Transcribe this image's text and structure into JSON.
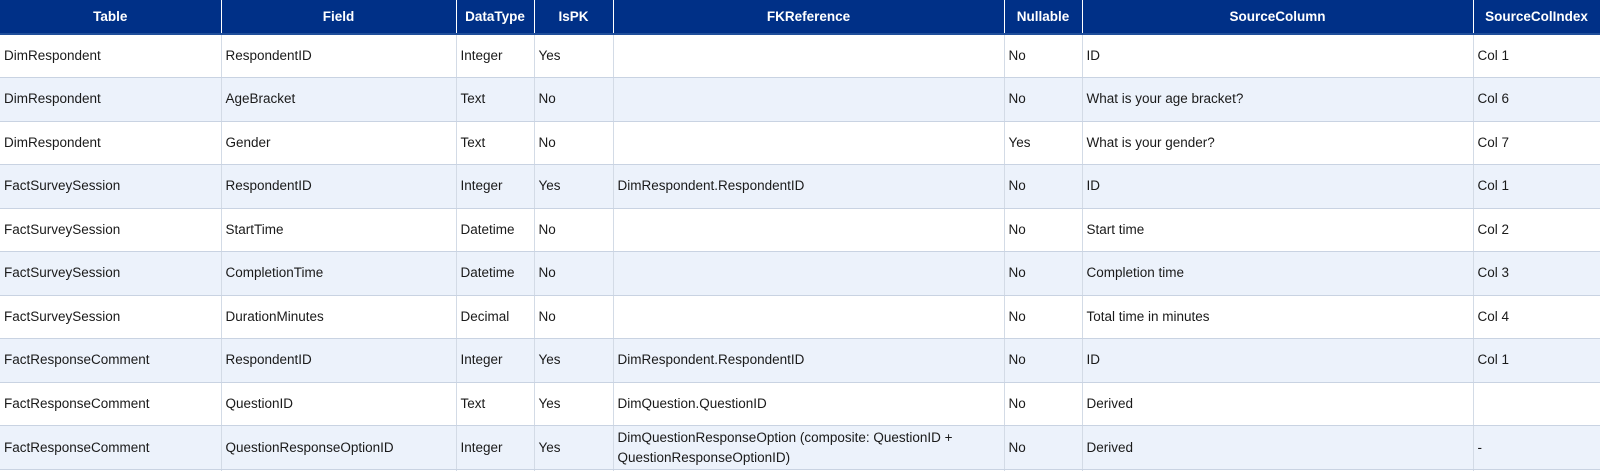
{
  "columns": [
    "Table",
    "Field",
    "DataType",
    "IsPK",
    "FKReference",
    "Nullable",
    "SourceColumn",
    "SourceColIndex"
  ],
  "rows": [
    {
      "table": "DimRespondent",
      "field": "RespondentID",
      "datatype": "Integer",
      "ispk": "Yes",
      "fk": "",
      "nullable": "No",
      "source": "ID",
      "index": "Col 1"
    },
    {
      "table": "DimRespondent",
      "field": "AgeBracket",
      "datatype": "Text",
      "ispk": "No",
      "fk": "",
      "nullable": "No",
      "source": "What is your age bracket?",
      "index": "Col 6"
    },
    {
      "table": "DimRespondent",
      "field": "Gender",
      "datatype": "Text",
      "ispk": "No",
      "fk": "",
      "nullable": "Yes",
      "source": "What is your gender?",
      "index": "Col 7"
    },
    {
      "table": "FactSurveySession",
      "field": "RespondentID",
      "datatype": "Integer",
      "ispk": "Yes",
      "fk": "DimRespondent.RespondentID",
      "nullable": "No",
      "source": "ID",
      "index": "Col 1"
    },
    {
      "table": "FactSurveySession",
      "field": "StartTime",
      "datatype": "Datetime",
      "ispk": "No",
      "fk": "",
      "nullable": "No",
      "source": "Start time",
      "index": "Col 2"
    },
    {
      "table": "FactSurveySession",
      "field": "CompletionTime",
      "datatype": "Datetime",
      "ispk": "No",
      "fk": "",
      "nullable": "No",
      "source": "Completion time",
      "index": "Col 3"
    },
    {
      "table": "FactSurveySession",
      "field": "DurationMinutes",
      "datatype": "Decimal",
      "ispk": "No",
      "fk": "",
      "nullable": "No",
      "source": "Total time in minutes",
      "index": "Col 4"
    },
    {
      "table": "FactResponseComment",
      "field": "RespondentID",
      "datatype": "Integer",
      "ispk": "Yes",
      "fk": "DimRespondent.RespondentID",
      "nullable": "No",
      "source": "ID",
      "index": "Col 1"
    },
    {
      "table": "FactResponseComment",
      "field": "QuestionID",
      "datatype": "Text",
      "ispk": "Yes",
      "fk": "DimQuestion.QuestionID",
      "nullable": "No",
      "source": "Derived",
      "index": ""
    },
    {
      "table": "FactResponseComment",
      "field": "QuestionResponseOptionID",
      "datatype": "Integer",
      "ispk": "Yes",
      "fk": "DimQuestionResponseOption (composite: QuestionID + QuestionResponseOptionID)",
      "nullable": "No",
      "source": "Derived",
      "index": "-"
    }
  ]
}
